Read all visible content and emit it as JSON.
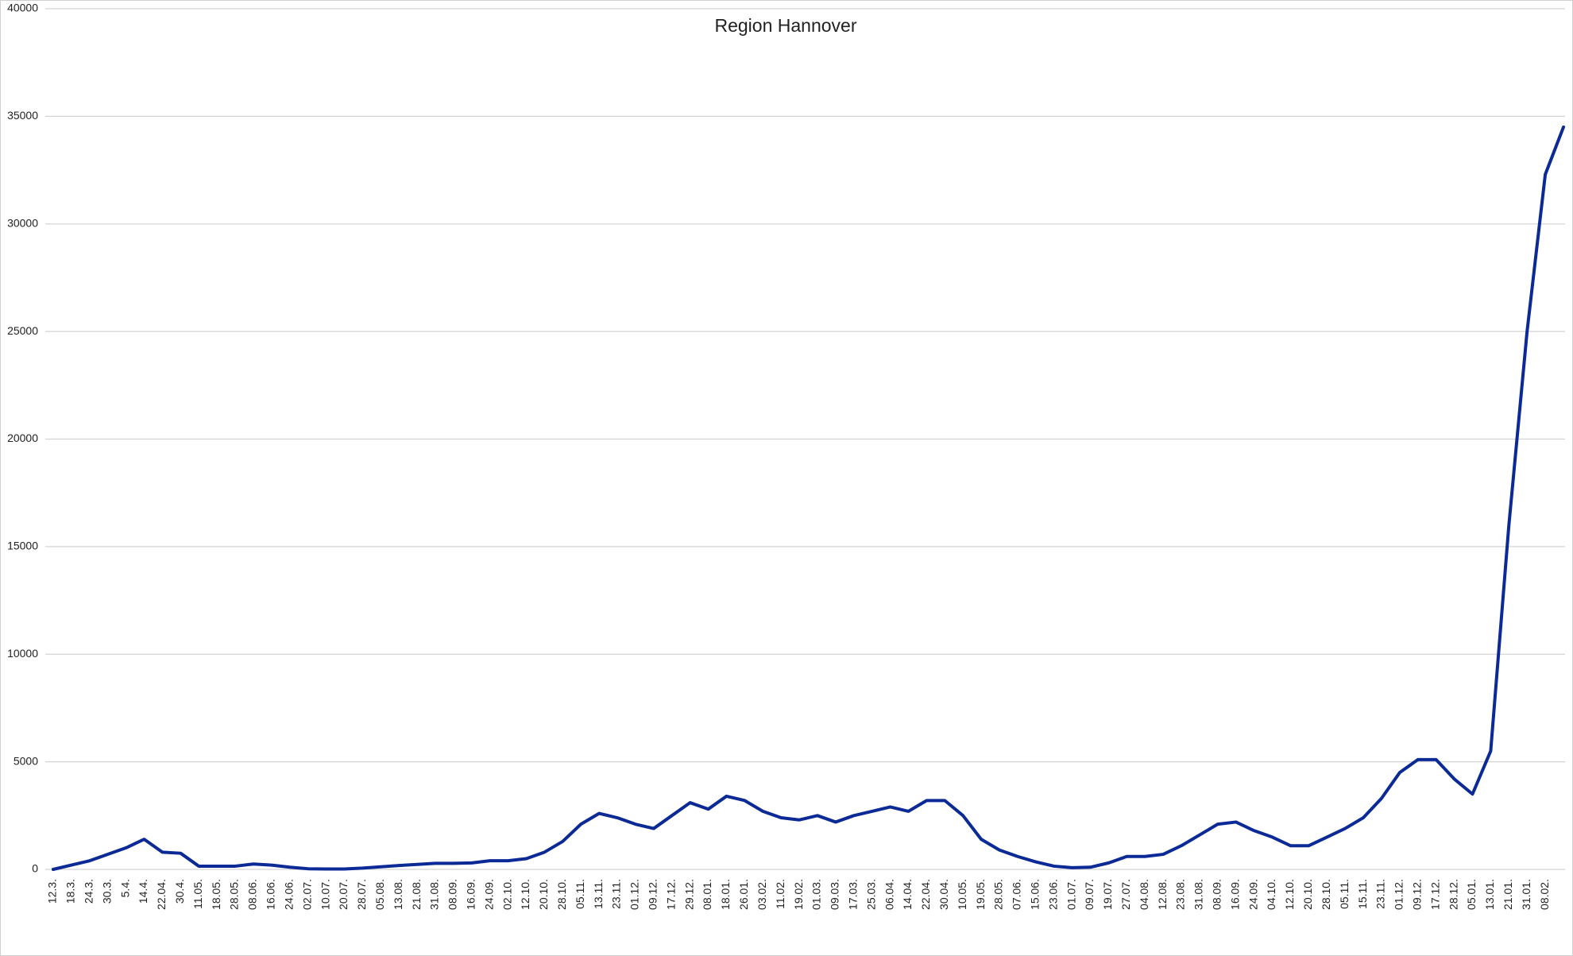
{
  "chart_data": {
    "type": "line",
    "title": "Region Hannover",
    "categories": [
      "12.3.",
      "18.3.",
      "24.3.",
      "30.3.",
      "5.4.",
      "14.4.",
      "22.04.",
      "30.4.",
      "11.05.",
      "18.05.",
      "28.05.",
      "08.06.",
      "16.06.",
      "24.06.",
      "02.07.",
      "10.07.",
      "20.07.",
      "28.07.",
      "05.08.",
      "13.08.",
      "21.08.",
      "31.08.",
      "08.09.",
      "16.09.",
      "24.09.",
      "02.10.",
      "12.10.",
      "20.10.",
      "28.10.",
      "05.11.",
      "13.11.",
      "23.11.",
      "01.12.",
      "09.12.",
      "17.12.",
      "29.12.",
      "08.01.",
      "18.01.",
      "26.01.",
      "03.02.",
      "11.02.",
      "19.02.",
      "01.03.",
      "09.03.",
      "17.03.",
      "25.03.",
      "06.04.",
      "14.04.",
      "22.04.",
      "30.04.",
      "10.05.",
      "19.05.",
      "28.05.",
      "07.06.",
      "15.06.",
      "23.06.",
      "01.07.",
      "09.07.",
      "19.07.",
      "27.07.",
      "04.08.",
      "12.08.",
      "23.08.",
      "31.08.",
      "08.09.",
      "16.09.",
      "24.09.",
      "04.10.",
      "12.10.",
      "20.10.",
      "28.10.",
      "05.11.",
      "15.11.",
      "23.11.",
      "01.12.",
      "09.12.",
      "17.12.",
      "28.12.",
      "05.01.",
      "13.01.",
      "21.01.",
      "31.01.",
      "08.02.",
      null
    ],
    "values": [
      0,
      200,
      400,
      700,
      1000,
      1400,
      800,
      750,
      150,
      150,
      150,
      250,
      200,
      100,
      30,
      20,
      20,
      60,
      120,
      180,
      230,
      280,
      280,
      300,
      400,
      400,
      500,
      800,
      1300,
      2100,
      2600,
      2400,
      2100,
      1900,
      2500,
      3100,
      2800,
      3400,
      3200,
      2700,
      2400,
      2300,
      2500,
      2200,
      2500,
      2700,
      2900,
      2700,
      3200,
      3200,
      2500,
      1400,
      900,
      600,
      350,
      150,
      80,
      100,
      300,
      600,
      600,
      700,
      1100,
      1600,
      2100,
      2200,
      1800,
      1500,
      1100,
      1100,
      1500,
      1900,
      2400,
      3300,
      4500,
      5100,
      5100,
      4200,
      3500,
      5500,
      16000,
      25000,
      32300,
      34500
    ],
    "color": "#0b2a96",
    "ylim": [
      0,
      40000
    ],
    "yticks": [
      0,
      5000,
      10000,
      15000,
      20000,
      25000,
      30000,
      35000,
      40000
    ],
    "grid": true
  }
}
